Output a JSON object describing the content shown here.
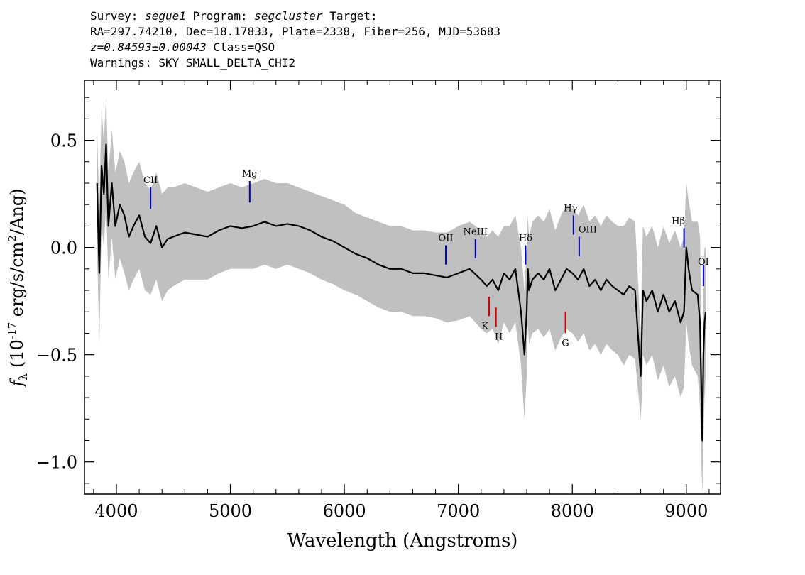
{
  "header": {
    "survey_label": "Survey:",
    "survey": "segue1",
    "program_label": "Program:",
    "program": "segcluster",
    "target_label": "Target:",
    "line2": "RA=297.74210, Dec=18.17833, Plate=2338, Fiber=256, MJD=53683",
    "redshift": "z=0.84593±0.00043",
    "class": "Class=QSO",
    "warnings": "Warnings: SKY SMALL_DELTA_CHI2"
  },
  "chart_data": {
    "type": "line",
    "xlabel": "Wavelength (Angstroms)",
    "ylabel_prefix": "f",
    "ylabel_sub": "λ",
    "ylabel_rest": " (10",
    "ylabel_exp": "-17",
    "ylabel_units": " erg/s/cm",
    "ylabel_exp2": "2",
    "ylabel_end": "/Ang)",
    "xlim": [
      3720,
      9300
    ],
    "ylim": [
      -1.15,
      0.78
    ],
    "xticks": [
      4000,
      5000,
      6000,
      7000,
      8000,
      9000
    ],
    "yticks": [
      0.5,
      0.0,
      -0.5,
      -1.0
    ],
    "ytick_labels": [
      "0.5",
      "0.0",
      "−0.5",
      "−1.0"
    ],
    "grid": false,
    "series": [
      {
        "role": "flux",
        "color": "#000000",
        "x": [
          3830,
          3850,
          3870,
          3890,
          3910,
          3930,
          3960,
          3990,
          4030,
          4070,
          4110,
          4150,
          4200,
          4250,
          4300,
          4350,
          4400,
          4450,
          4500,
          4600,
          4700,
          4800,
          4900,
          5000,
          5100,
          5200,
          5300,
          5400,
          5500,
          5600,
          5700,
          5800,
          5900,
          6000,
          6100,
          6200,
          6300,
          6400,
          6500,
          6600,
          6700,
          6800,
          6900,
          7000,
          7100,
          7200,
          7250,
          7300,
          7350,
          7400,
          7450,
          7500,
          7550,
          7580,
          7600,
          7610,
          7620,
          7650,
          7700,
          7750,
          7800,
          7850,
          7900,
          7950,
          8000,
          8050,
          8100,
          8150,
          8200,
          8250,
          8300,
          8350,
          8400,
          8450,
          8500,
          8550,
          8600,
          8610,
          8620,
          8650,
          8700,
          8750,
          8800,
          8850,
          8900,
          8950,
          8980,
          9000,
          9020,
          9050,
          9100,
          9120,
          9140,
          9150,
          9160,
          9170
        ],
        "y": [
          0.3,
          -0.12,
          0.38,
          0.25,
          0.48,
          0.1,
          0.3,
          0.1,
          0.2,
          0.15,
          0.05,
          0.1,
          0.15,
          0.05,
          0.02,
          0.1,
          0.0,
          0.04,
          0.05,
          0.07,
          0.06,
          0.05,
          0.08,
          0.1,
          0.09,
          0.1,
          0.12,
          0.1,
          0.11,
          0.1,
          0.08,
          0.05,
          0.03,
          0.0,
          -0.03,
          -0.05,
          -0.08,
          -0.1,
          -0.1,
          -0.12,
          -0.12,
          -0.13,
          -0.14,
          -0.12,
          -0.1,
          -0.15,
          -0.18,
          -0.15,
          -0.2,
          -0.12,
          -0.15,
          -0.1,
          -0.3,
          -0.5,
          -0.3,
          -0.1,
          -0.2,
          -0.15,
          -0.12,
          -0.15,
          -0.1,
          -0.2,
          -0.15,
          -0.1,
          -0.12,
          -0.15,
          -0.1,
          -0.18,
          -0.15,
          -0.2,
          -0.15,
          -0.18,
          -0.2,
          -0.22,
          -0.18,
          -0.2,
          -0.6,
          -0.4,
          -0.2,
          -0.25,
          -0.2,
          -0.3,
          -0.22,
          -0.3,
          -0.25,
          -0.35,
          -0.3,
          0.0,
          -0.1,
          -0.2,
          -0.22,
          -0.35,
          -0.9,
          -0.5,
          -0.35,
          -0.3
        ]
      },
      {
        "role": "error-band",
        "color": "#c0c0c0",
        "x": [
          3830,
          3850,
          3870,
          3890,
          3910,
          3930,
          3960,
          3990,
          4030,
          4070,
          4110,
          4150,
          4200,
          4250,
          4300,
          4350,
          4400,
          4450,
          4500,
          4600,
          4700,
          4800,
          4900,
          5000,
          5100,
          5200,
          5300,
          5400,
          5500,
          5600,
          5700,
          5800,
          5900,
          6000,
          6100,
          6200,
          6300,
          6400,
          6500,
          6600,
          6700,
          6800,
          6900,
          7000,
          7100,
          7200,
          7250,
          7300,
          7350,
          7400,
          7450,
          7500,
          7550,
          7580,
          7600,
          7610,
          7620,
          7650,
          7700,
          7750,
          7800,
          7850,
          7900,
          7950,
          8000,
          8050,
          8100,
          8150,
          8200,
          8250,
          8300,
          8350,
          8400,
          8450,
          8500,
          8550,
          8600,
          8610,
          8620,
          8650,
          8700,
          8750,
          8800,
          8850,
          8900,
          8950,
          8980,
          9000,
          9020,
          9050,
          9100,
          9120,
          9140,
          9150,
          9160,
          9170
        ],
        "lower": [
          0.0,
          -0.45,
          0.1,
          0.0,
          0.2,
          -0.15,
          0.05,
          -0.15,
          -0.05,
          -0.12,
          -0.2,
          -0.15,
          -0.1,
          -0.2,
          -0.22,
          -0.15,
          -0.25,
          -0.2,
          -0.18,
          -0.15,
          -0.15,
          -0.15,
          -0.12,
          -0.1,
          -0.1,
          -0.1,
          -0.08,
          -0.1,
          -0.08,
          -0.1,
          -0.12,
          -0.15,
          -0.17,
          -0.2,
          -0.22,
          -0.25,
          -0.28,
          -0.3,
          -0.3,
          -0.32,
          -0.32,
          -0.33,
          -0.35,
          -0.34,
          -0.32,
          -0.38,
          -0.4,
          -0.38,
          -0.45,
          -0.35,
          -0.4,
          -0.35,
          -0.55,
          -0.8,
          -0.6,
          -0.35,
          -0.45,
          -0.4,
          -0.38,
          -0.42,
          -0.38,
          -0.48,
          -0.42,
          -0.38,
          -0.4,
          -0.44,
          -0.4,
          -0.48,
          -0.45,
          -0.5,
          -0.45,
          -0.48,
          -0.5,
          -0.55,
          -0.5,
          -0.52,
          -0.8,
          -0.7,
          -0.5,
          -0.55,
          -0.5,
          -0.62,
          -0.55,
          -0.65,
          -0.6,
          -0.7,
          -0.65,
          -0.35,
          -0.45,
          -0.55,
          -0.6,
          -0.75,
          -1.15,
          -0.9,
          -0.7,
          -0.6
        ],
        "upper": [
          0.55,
          0.2,
          0.65,
          0.5,
          0.7,
          0.35,
          0.55,
          0.35,
          0.45,
          0.4,
          0.3,
          0.35,
          0.4,
          0.3,
          0.27,
          0.35,
          0.25,
          0.28,
          0.28,
          0.3,
          0.28,
          0.26,
          0.28,
          0.3,
          0.28,
          0.3,
          0.32,
          0.3,
          0.3,
          0.28,
          0.26,
          0.24,
          0.22,
          0.2,
          0.16,
          0.14,
          0.12,
          0.1,
          0.1,
          0.08,
          0.08,
          0.07,
          0.07,
          0.1,
          0.12,
          0.08,
          0.05,
          0.08,
          0.05,
          0.1,
          0.1,
          0.15,
          0.0,
          -0.2,
          0.0,
          0.15,
          0.05,
          0.12,
          0.15,
          0.12,
          0.18,
          0.08,
          0.15,
          0.2,
          0.18,
          0.15,
          0.2,
          0.12,
          0.15,
          0.1,
          0.15,
          0.12,
          0.1,
          0.1,
          0.14,
          0.12,
          -0.4,
          -0.1,
          0.1,
          0.05,
          0.1,
          0.0,
          0.1,
          0.02,
          0.08,
          0.0,
          0.05,
          0.3,
          0.22,
          0.12,
          0.12,
          0.05,
          -0.65,
          -0.1,
          0.0,
          0.0
        ]
      }
    ],
    "emission_lines": [
      {
        "name": "CII",
        "wave": 4300,
        "y_bottom": 0.18,
        "y_top": 0.28,
        "label_dx": 0,
        "label_dy": -6,
        "color": "#0000cc"
      },
      {
        "name": "Mg",
        "wave": 5170,
        "y_bottom": 0.21,
        "y_top": 0.31,
        "label_dx": 0,
        "label_dy": -6,
        "color": "#0000cc"
      },
      {
        "name": "OII",
        "wave": 6890,
        "y_bottom": -0.08,
        "y_top": 0.01,
        "label_dx": 0,
        "label_dy": -6,
        "color": "#0000cc"
      },
      {
        "name": "NeIII",
        "wave": 7150,
        "y_bottom": -0.05,
        "y_top": 0.04,
        "label_dx": 0,
        "label_dy": -6,
        "color": "#0000cc"
      },
      {
        "name": "Hδ",
        "wave": 7590,
        "y_bottom": -0.08,
        "y_top": 0.01,
        "label_dx": 0,
        "label_dy": -6,
        "color": "#0000cc"
      },
      {
        "name": "Hγ",
        "wave": 8010,
        "y_bottom": 0.06,
        "y_top": 0.15,
        "label_dx": -4,
        "label_dy": -6,
        "color": "#0000cc"
      },
      {
        "name": "OIII",
        "wave": 8060,
        "y_bottom": -0.04,
        "y_top": 0.05,
        "label_dx": 12,
        "label_dy": -6,
        "color": "#0000cc"
      },
      {
        "name": "Hβ",
        "wave": 8980,
        "y_bottom": 0.0,
        "y_top": 0.09,
        "label_dx": -8,
        "label_dy": -6,
        "color": "#0000cc"
      },
      {
        "name": "OI",
        "wave": 9150,
        "y_bottom": -0.18,
        "y_top": -0.08,
        "label_dx": 0,
        "label_dy": 0,
        "color": "#0000cc"
      }
    ],
    "absorption_lines": [
      {
        "name": "K",
        "wave": 7270,
        "y_top": -0.23,
        "y_bottom": -0.32,
        "label_dx": -6,
        "label_dy": 18,
        "color": "#cc0000"
      },
      {
        "name": "H",
        "wave": 7330,
        "y_top": -0.28,
        "y_bottom": -0.37,
        "label_dx": 4,
        "label_dy": 18,
        "color": "#cc0000"
      },
      {
        "name": "G",
        "wave": 7940,
        "y_top": -0.3,
        "y_bottom": -0.4,
        "label_dx": 0,
        "label_dy": 18,
        "color": "#cc0000"
      }
    ]
  }
}
